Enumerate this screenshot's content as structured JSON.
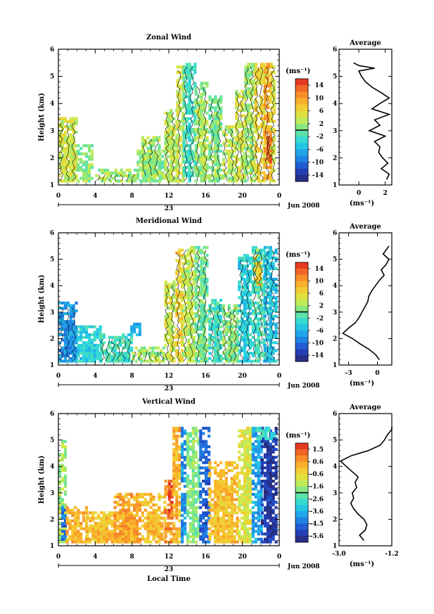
{
  "figure": {
    "xlabel": "Local Time",
    "time_ticks": [
      "0",
      "4",
      "8",
      "12",
      "16",
      "20",
      "0"
    ],
    "day_label": "23",
    "month_label": "Jun 2008",
    "height_ticks": [
      "1",
      "2",
      "3",
      "4",
      "5",
      "6"
    ],
    "height_label": "Height (km)",
    "unit_label": "(ms⁻¹)",
    "average_title": "Average"
  },
  "chart_data": [
    {
      "type": "heatmap",
      "title": "Zonal Wind",
      "xlabel": "",
      "ylabel": "Height (km)",
      "xlim": [
        0,
        24
      ],
      "ylim": [
        1,
        6
      ],
      "x_unit": "hours (local time), 23 Jun 2008",
      "colorbar": {
        "label": "(ms⁻¹)",
        "ticks": [
          "14",
          "10",
          "6",
          "2",
          "-2",
          "-6",
          "-10",
          "-14"
        ],
        "range": [
          -16,
          16
        ]
      },
      "valid_regions": [
        {
          "x": [
            0,
            2
          ],
          "y": [
            1.1,
            3.5
          ],
          "value": 4
        },
        {
          "x": [
            2,
            3.8
          ],
          "y": [
            1.1,
            2.5
          ],
          "value": 1
        },
        {
          "x": [
            4,
            8.5
          ],
          "y": [
            1.1,
            1.6
          ],
          "value": 2
        },
        {
          "x": [
            8.5,
            11.5
          ],
          "y": [
            1.1,
            2.3
          ],
          "value": 1
        },
        {
          "x": [
            9,
            11
          ],
          "y": [
            1.3,
            2.8
          ],
          "value": 2
        },
        {
          "x": [
            11.5,
            12.8
          ],
          "y": [
            1.1,
            3.8
          ],
          "value": 3
        },
        {
          "x": [
            12.8,
            13.5
          ],
          "y": [
            1.1,
            5.4
          ],
          "value": 4
        },
        {
          "x": [
            13.5,
            14.8
          ],
          "y": [
            1.1,
            5.5
          ],
          "value": -3
        },
        {
          "x": [
            14.8,
            16.3
          ],
          "y": [
            1.1,
            4.8
          ],
          "value": 2
        },
        {
          "x": [
            16.3,
            17.8
          ],
          "y": [
            1.1,
            4.3
          ],
          "value": 1
        },
        {
          "x": [
            17.8,
            19.2
          ],
          "y": [
            1.1,
            3.2
          ],
          "value": 3
        },
        {
          "x": [
            19.2,
            20.2
          ],
          "y": [
            1.1,
            4.5
          ],
          "value": 4
        },
        {
          "x": [
            20.2,
            21.3
          ],
          "y": [
            1.1,
            5.5
          ],
          "value": 2
        },
        {
          "x": [
            21.3,
            22.3
          ],
          "y": [
            1.1,
            5.5
          ],
          "value": 6
        },
        {
          "x": [
            22.3,
            23.0
          ],
          "y": [
            1.1,
            5.5
          ],
          "value": 9
        },
        {
          "x": [
            23.0,
            23.6
          ],
          "y": [
            1.1,
            5.5
          ],
          "value": 5
        },
        {
          "x": [
            22.6,
            23.2
          ],
          "y": [
            1.8,
            3.0
          ],
          "value": 12
        }
      ],
      "average": {
        "xlim": [
          -1.5,
          2.5
        ],
        "xticks": [
          "0",
          "2"
        ],
        "xlabel": "(ms⁻¹)",
        "height": [
          1.2,
          1.4,
          1.6,
          1.8,
          2.0,
          2.2,
          2.4,
          2.6,
          2.8,
          3.0,
          3.2,
          3.4,
          3.6,
          3.8,
          4.0,
          4.2,
          4.4,
          4.6,
          4.8,
          5.0,
          5.2,
          5.3,
          5.4,
          5.5
        ],
        "value": [
          2.1,
          2.3,
          1.7,
          2.2,
          1.8,
          1.5,
          1.6,
          1.2,
          2.0,
          0.8,
          1.6,
          1.2,
          2.3,
          1.0,
          1.6,
          2.3,
          1.7,
          1.0,
          0.5,
          0.2,
          0.0,
          1.2,
          0.0,
          -0.4
        ]
      }
    },
    {
      "type": "heatmap",
      "title": "Meridional Wind",
      "xlabel": "",
      "ylabel": "Height (km)",
      "xlim": [
        0,
        24
      ],
      "ylim": [
        1,
        6
      ],
      "x_unit": "hours (local time), 23 Jun 2008",
      "colorbar": {
        "label": "(ms⁻¹)",
        "ticks": [
          "14",
          "10",
          "6",
          "2",
          "-2",
          "-6",
          "-10",
          "-14"
        ],
        "range": [
          -16,
          16
        ]
      },
      "valid_regions": [
        {
          "x": [
            0,
            2
          ],
          "y": [
            1.1,
            3.4
          ],
          "value": -8
        },
        {
          "x": [
            2,
            4.5
          ],
          "y": [
            1.1,
            2.5
          ],
          "value": -4
        },
        {
          "x": [
            4.5,
            8
          ],
          "y": [
            1.1,
            2.2
          ],
          "value": -2
        },
        {
          "x": [
            7.5,
            8.8
          ],
          "y": [
            2.1,
            2.6
          ],
          "value": -6
        },
        {
          "x": [
            8,
            11.5
          ],
          "y": [
            1.1,
            1.7
          ],
          "value": 2
        },
        {
          "x": [
            11.5,
            12.7
          ],
          "y": [
            1.1,
            4.2
          ],
          "value": 4
        },
        {
          "x": [
            12.7,
            13.4
          ],
          "y": [
            1.1,
            5.4
          ],
          "value": 7
        },
        {
          "x": [
            13.4,
            14.8
          ],
          "y": [
            1.1,
            5.5
          ],
          "value": 3
        },
        {
          "x": [
            14.8,
            16.3
          ],
          "y": [
            1.1,
            5.5
          ],
          "value": 0
        },
        {
          "x": [
            16.3,
            17.8
          ],
          "y": [
            1.1,
            3.5
          ],
          "value": -2
        },
        {
          "x": [
            17.8,
            19.5
          ],
          "y": [
            1.1,
            3.3
          ],
          "value": 1
        },
        {
          "x": [
            19.5,
            21
          ],
          "y": [
            1.1,
            5.2
          ],
          "value": -4
        },
        {
          "x": [
            21,
            22.3
          ],
          "y": [
            1.1,
            5.5
          ],
          "value": -2
        },
        {
          "x": [
            22.3,
            23.6
          ],
          "y": [
            1.1,
            5.5
          ],
          "value": -5
        },
        {
          "x": [
            21.2,
            21.9
          ],
          "y": [
            4.0,
            5.4
          ],
          "value": 6
        }
      ],
      "average": {
        "xlim": [
          -4,
          1.5
        ],
        "xticks": [
          "-3",
          "0"
        ],
        "xlabel": "(ms⁻¹)",
        "height": [
          1.2,
          1.4,
          1.6,
          1.8,
          2.0,
          2.2,
          2.4,
          2.6,
          2.8,
          3.0,
          3.2,
          3.4,
          3.6,
          3.8,
          4.0,
          4.2,
          4.4,
          4.6,
          4.8,
          5.0,
          5.2,
          5.4,
          5.5
        ],
        "value": [
          0.2,
          -0.2,
          -0.9,
          -1.8,
          -2.6,
          -3.6,
          -3.0,
          -2.3,
          -1.9,
          -1.6,
          -1.3,
          -1.0,
          -0.9,
          -0.6,
          -0.2,
          0.2,
          0.7,
          0.4,
          0.9,
          1.2,
          0.6,
          1.0,
          1.2
        ]
      }
    },
    {
      "type": "heatmap",
      "title": "Vertical Wind",
      "xlabel": "Local Time",
      "ylabel": "Height (km)",
      "xlim": [
        0,
        24
      ],
      "ylim": [
        1,
        6
      ],
      "x_unit": "hours (local time), 23 Jun 2008",
      "colorbar": {
        "label": "(ms⁻¹)",
        "ticks": [
          "1.5",
          "0.6",
          "-0.6",
          "-1.6",
          "-2.6",
          "-3.6",
          "-4.5",
          "-5.6"
        ],
        "range": [
          -6.0,
          2.0
        ]
      },
      "valid_regions": [
        {
          "x": [
            0,
            0.7
          ],
          "y": [
            1.1,
            5.0
          ],
          "value": -1.5
        },
        {
          "x": [
            0.3,
            0.8
          ],
          "y": [
            1.2,
            2.5
          ],
          "value": -4.5
        },
        {
          "x": [
            0.8,
            3
          ],
          "y": [
            1.1,
            2.5
          ],
          "value": 0.2
        },
        {
          "x": [
            3,
            6
          ],
          "y": [
            1.1,
            2.3
          ],
          "value": 0.0
        },
        {
          "x": [
            6,
            9
          ],
          "y": [
            1.1,
            3.0
          ],
          "value": 0.4
        },
        {
          "x": [
            9,
            11.5
          ],
          "y": [
            1.1,
            3.0
          ],
          "value": 0.0
        },
        {
          "x": [
            11.5,
            12.4
          ],
          "y": [
            1.1,
            3.5
          ],
          "value": 0.8
        },
        {
          "x": [
            11.9,
            12.3
          ],
          "y": [
            2.0,
            3.5
          ],
          "value": 1.6
        },
        {
          "x": [
            12.4,
            13.3
          ],
          "y": [
            1.1,
            5.5
          ],
          "value": 0.2
        },
        {
          "x": [
            13.3,
            13.9
          ],
          "y": [
            1.1,
            5.5
          ],
          "value": -4.0
        },
        {
          "x": [
            13.9,
            15.3
          ],
          "y": [
            1.1,
            5.5
          ],
          "value": -1.8
        },
        {
          "x": [
            15.3,
            16.3
          ],
          "y": [
            1.1,
            5.5
          ],
          "value": -4.8
        },
        {
          "x": [
            16.3,
            19.5
          ],
          "y": [
            1.1,
            4.2
          ],
          "value": 0.0
        },
        {
          "x": [
            19.5,
            21.0
          ],
          "y": [
            1.1,
            5.5
          ],
          "value": -0.8
        },
        {
          "x": [
            21.0,
            22.0
          ],
          "y": [
            1.1,
            5.5
          ],
          "value": -3.8
        },
        {
          "x": [
            22.0,
            23.6
          ],
          "y": [
            1.1,
            5.5
          ],
          "value": -5.4
        },
        {
          "x": [
            21.2,
            23.6
          ],
          "y": [
            5.0,
            5.5
          ],
          "value": -2.8
        }
      ],
      "average": {
        "xlim": [
          -3.0,
          -1.2
        ],
        "xticks": [
          "-3.0",
          "-1.2"
        ],
        "xlabel": "(ms⁻¹)",
        "height": [
          1.2,
          1.4,
          1.6,
          1.8,
          2.0,
          2.2,
          2.4,
          2.6,
          2.8,
          3.0,
          3.2,
          3.4,
          3.6,
          3.8,
          4.0,
          4.2,
          4.4,
          4.6,
          4.8,
          5.0,
          5.2,
          5.4,
          5.5
        ],
        "value": [
          -2.15,
          -2.3,
          -2.1,
          -2.05,
          -2.15,
          -2.35,
          -2.5,
          -2.6,
          -2.5,
          -2.55,
          -2.4,
          -2.45,
          -2.35,
          -2.55,
          -2.75,
          -2.95,
          -2.6,
          -2.0,
          -1.6,
          -1.45,
          -1.35,
          -1.2,
          -1.2
        ]
      }
    }
  ]
}
